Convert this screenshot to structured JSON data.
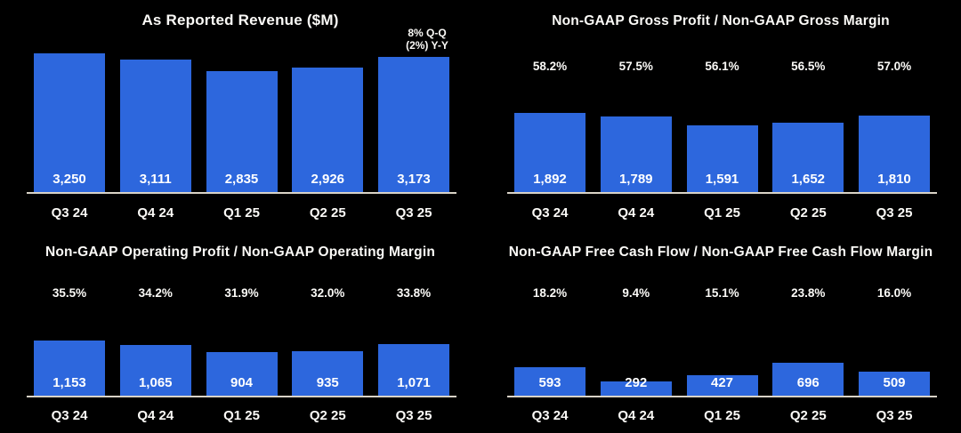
{
  "page": {
    "background": "#000000"
  },
  "style": {
    "bar_color": "#2d67dd",
    "axis_color": "#d9d3c7",
    "text_color": "#ffffff"
  },
  "chart_data": [
    {
      "type": "bar",
      "title": "As Reported Revenue ($M)",
      "categories": [
        "Q3 24",
        "Q4 24",
        "Q1 25",
        "Q2 25",
        "Q3 25"
      ],
      "values": [
        3250,
        3111,
        2835,
        2926,
        3173
      ],
      "value_labels": [
        "3,250",
        "3,111",
        "2,835",
        "2,926",
        "3,173"
      ],
      "annotation_lines": [
        "8% Q-Q",
        "(2%) Y-Y"
      ],
      "xlabel": "",
      "ylabel": "",
      "ylim": [
        0,
        3250
      ],
      "grid": false,
      "legend": "none"
    },
    {
      "type": "bar",
      "title": "Non-GAAP Gross Profit / Non-GAAP Gross Margin",
      "categories": [
        "Q3 24",
        "Q4 24",
        "Q1 25",
        "Q2 25",
        "Q3 25"
      ],
      "values": [
        1892,
        1789,
        1591,
        1652,
        1810
      ],
      "value_labels": [
        "1,892",
        "1,789",
        "1,591",
        "1,652",
        "1,810"
      ],
      "margin_values": [
        58.2,
        57.5,
        56.1,
        56.5,
        57.0
      ],
      "margin_labels": [
        "58.2%",
        "57.5%",
        "56.1%",
        "56.5%",
        "57.0%"
      ],
      "xlabel": "",
      "ylabel": "",
      "ylim": [
        0,
        3300
      ],
      "grid": false,
      "legend": "none"
    },
    {
      "type": "bar",
      "title": "Non-GAAP Operating Profit / Non-GAAP Operating Margin",
      "categories": [
        "Q3 24",
        "Q4 24",
        "Q1 25",
        "Q2 25",
        "Q3 25"
      ],
      "values": [
        1153,
        1065,
        904,
        935,
        1071
      ],
      "value_labels": [
        "1,153",
        "1,065",
        "904",
        "935",
        "1,071"
      ],
      "margin_values": [
        35.5,
        34.2,
        31.9,
        32.0,
        33.8
      ],
      "margin_labels": [
        "35.5%",
        "34.2%",
        "31.9%",
        "32.0%",
        "33.8%"
      ],
      "xlabel": "",
      "ylabel": "",
      "ylim": [
        0,
        2900
      ],
      "grid": false,
      "legend": "none"
    },
    {
      "type": "bar",
      "title": "Non-GAAP Free Cash Flow / Non-GAAP Free Cash Flow Margin",
      "categories": [
        "Q3 24",
        "Q4 24",
        "Q1 25",
        "Q2 25",
        "Q3 25"
      ],
      "values": [
        593,
        292,
        427,
        696,
        509
      ],
      "value_labels": [
        "593",
        "292",
        "427",
        "696",
        "509"
      ],
      "margin_values": [
        18.2,
        9.4,
        15.1,
        23.8,
        16.0
      ],
      "margin_labels": [
        "18.2%",
        "9.4%",
        "15.1%",
        "23.8%",
        "16.0%"
      ],
      "xlabel": "",
      "ylabel": "",
      "ylim": [
        0,
        2900
      ],
      "grid": false,
      "legend": "none"
    }
  ]
}
